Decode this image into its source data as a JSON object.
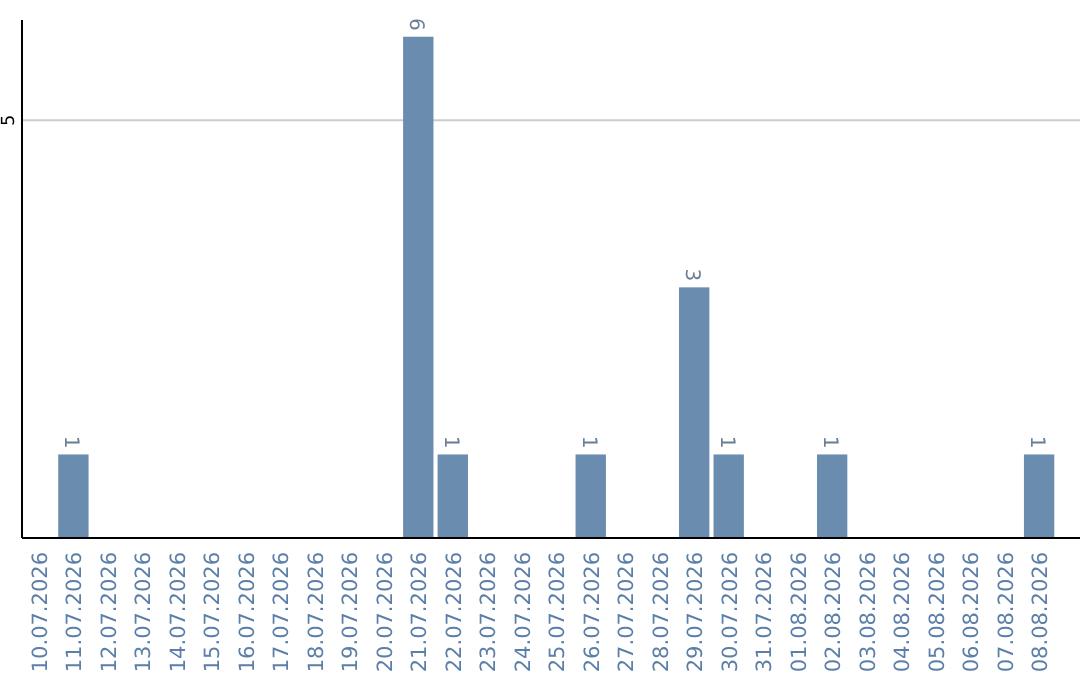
{
  "chart_data": {
    "type": "bar",
    "categories": [
      "10.07.2026",
      "11.07.2026",
      "12.07.2026",
      "13.07.2026",
      "14.07.2026",
      "15.07.2026",
      "16.07.2026",
      "17.07.2026",
      "18.07.2026",
      "19.07.2026",
      "20.07.2026",
      "21.07.2026",
      "22.07.2026",
      "23.07.2026",
      "24.07.2026",
      "25.07.2026",
      "26.07.2026",
      "27.07.2026",
      "28.07.2026",
      "29.07.2026",
      "30.07.2026",
      "31.07.2026",
      "01.08.2026",
      "02.08.2026",
      "03.08.2026",
      "04.08.2026",
      "05.08.2026",
      "06.08.2026",
      "07.08.2026",
      "08.08.2026"
    ],
    "values": [
      0,
      1,
      0,
      0,
      0,
      0,
      0,
      0,
      0,
      0,
      0,
      6,
      1,
      0,
      0,
      0,
      1,
      0,
      0,
      3,
      1,
      0,
      0,
      1,
      0,
      0,
      0,
      0,
      0,
      1
    ],
    "value_labels": [
      null,
      "1",
      null,
      null,
      null,
      null,
      null,
      null,
      null,
      null,
      null,
      "6",
      "1",
      null,
      null,
      null,
      "1",
      null,
      null,
      "3",
      "1",
      null,
      null,
      "1",
      null,
      null,
      null,
      null,
      null,
      "1"
    ],
    "color": "#6a8caf",
    "ylim": [
      0,
      6.2
    ],
    "yticks": [
      5
    ],
    "grid": "y"
  }
}
